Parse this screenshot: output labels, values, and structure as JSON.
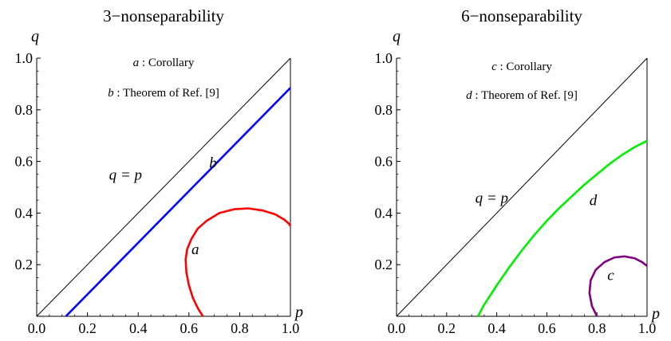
{
  "chart_data": [
    {
      "type": "line",
      "title": "3−nonseparability",
      "xlabel": "p",
      "ylabel": "q",
      "xlim": [
        0,
        1
      ],
      "ylim": [
        0,
        1
      ],
      "x_ticks": [
        "0.0",
        "0.2",
        "0.4",
        "0.6",
        "0.8",
        "1.0"
      ],
      "y_ticks": [
        "0.2",
        "0.4",
        "0.6",
        "0.8",
        "1.0"
      ],
      "x_tick_values": [
        0,
        0.2,
        0.4,
        0.6,
        0.8,
        1.0
      ],
      "y_tick_values": [
        0.2,
        0.4,
        0.6,
        0.8,
        1.0
      ],
      "grid": false,
      "boundary_color": "#000000",
      "legend_entries": [
        {
          "key": "a",
          "text": " : Corollary"
        },
        {
          "key": "b",
          "text": " : Theorem of Ref. [9]"
        }
      ],
      "diagonal_label": "q = p",
      "diagonal_label_pos": [
        0.35,
        0.53
      ],
      "series": [
        {
          "name": "a",
          "label": "a",
          "color": "#ff0000",
          "label_pos": [
            0.625,
            0.24
          ],
          "x": [
            0.655,
            0.636,
            0.616,
            0.6,
            0.59,
            0.587,
            0.593,
            0.61,
            0.635,
            0.67,
            0.72,
            0.78,
            0.835,
            0.89,
            0.94,
            0.975,
            0.993,
            1.0
          ],
          "y": [
            0.0,
            0.03,
            0.07,
            0.12,
            0.17,
            0.22,
            0.26,
            0.3,
            0.34,
            0.37,
            0.4,
            0.415,
            0.418,
            0.41,
            0.395,
            0.375,
            0.36,
            0.35
          ]
        },
        {
          "name": "b",
          "label": "b",
          "color": "#0000ff",
          "label_pos": [
            0.695,
            0.575
          ],
          "x": [
            0.115,
            1.0
          ],
          "y": [
            0.0,
            0.885
          ]
        }
      ]
    },
    {
      "type": "line",
      "title": "6−nonseparability",
      "xlabel": "p",
      "ylabel": "q",
      "xlim": [
        0,
        1
      ],
      "ylim": [
        0,
        1
      ],
      "x_ticks": [
        "0.0",
        "0.2",
        "0.4",
        "0.6",
        "0.8",
        "1.0"
      ],
      "y_ticks": [
        "0.2",
        "0.4",
        "0.6",
        "0.8",
        "1.0"
      ],
      "x_tick_values": [
        0,
        0.2,
        0.4,
        0.6,
        0.8,
        1.0
      ],
      "y_tick_values": [
        0.2,
        0.4,
        0.6,
        0.8,
        1.0
      ],
      "grid": false,
      "boundary_color": "#000000",
      "legend_entries": [
        {
          "key": "c",
          "text": " : Corollary"
        },
        {
          "key": "d",
          "text": " : Theorem of Ref. [9]"
        }
      ],
      "diagonal_label": "q = p",
      "diagonal_label_pos": [
        0.38,
        0.44
      ],
      "series": [
        {
          "name": "c",
          "label": "c",
          "color": "#800080",
          "label_pos": [
            0.855,
            0.14
          ],
          "x": [
            0.8,
            0.78,
            0.77,
            0.775,
            0.795,
            0.83,
            0.87,
            0.91,
            0.95,
            0.98,
            1.0
          ],
          "y": [
            0.0,
            0.04,
            0.09,
            0.14,
            0.18,
            0.21,
            0.228,
            0.232,
            0.225,
            0.21,
            0.195
          ]
        },
        {
          "name": "d",
          "label": "d",
          "color": "#00ee00",
          "label_pos": [
            0.785,
            0.43
          ],
          "x": [
            0.325,
            0.35,
            0.4,
            0.45,
            0.5,
            0.55,
            0.6,
            0.65,
            0.7,
            0.75,
            0.8,
            0.85,
            0.9,
            0.95,
            1.0
          ],
          "y": [
            0.0,
            0.045,
            0.12,
            0.19,
            0.255,
            0.315,
            0.37,
            0.42,
            0.465,
            0.51,
            0.55,
            0.59,
            0.625,
            0.655,
            0.68
          ]
        }
      ]
    }
  ]
}
